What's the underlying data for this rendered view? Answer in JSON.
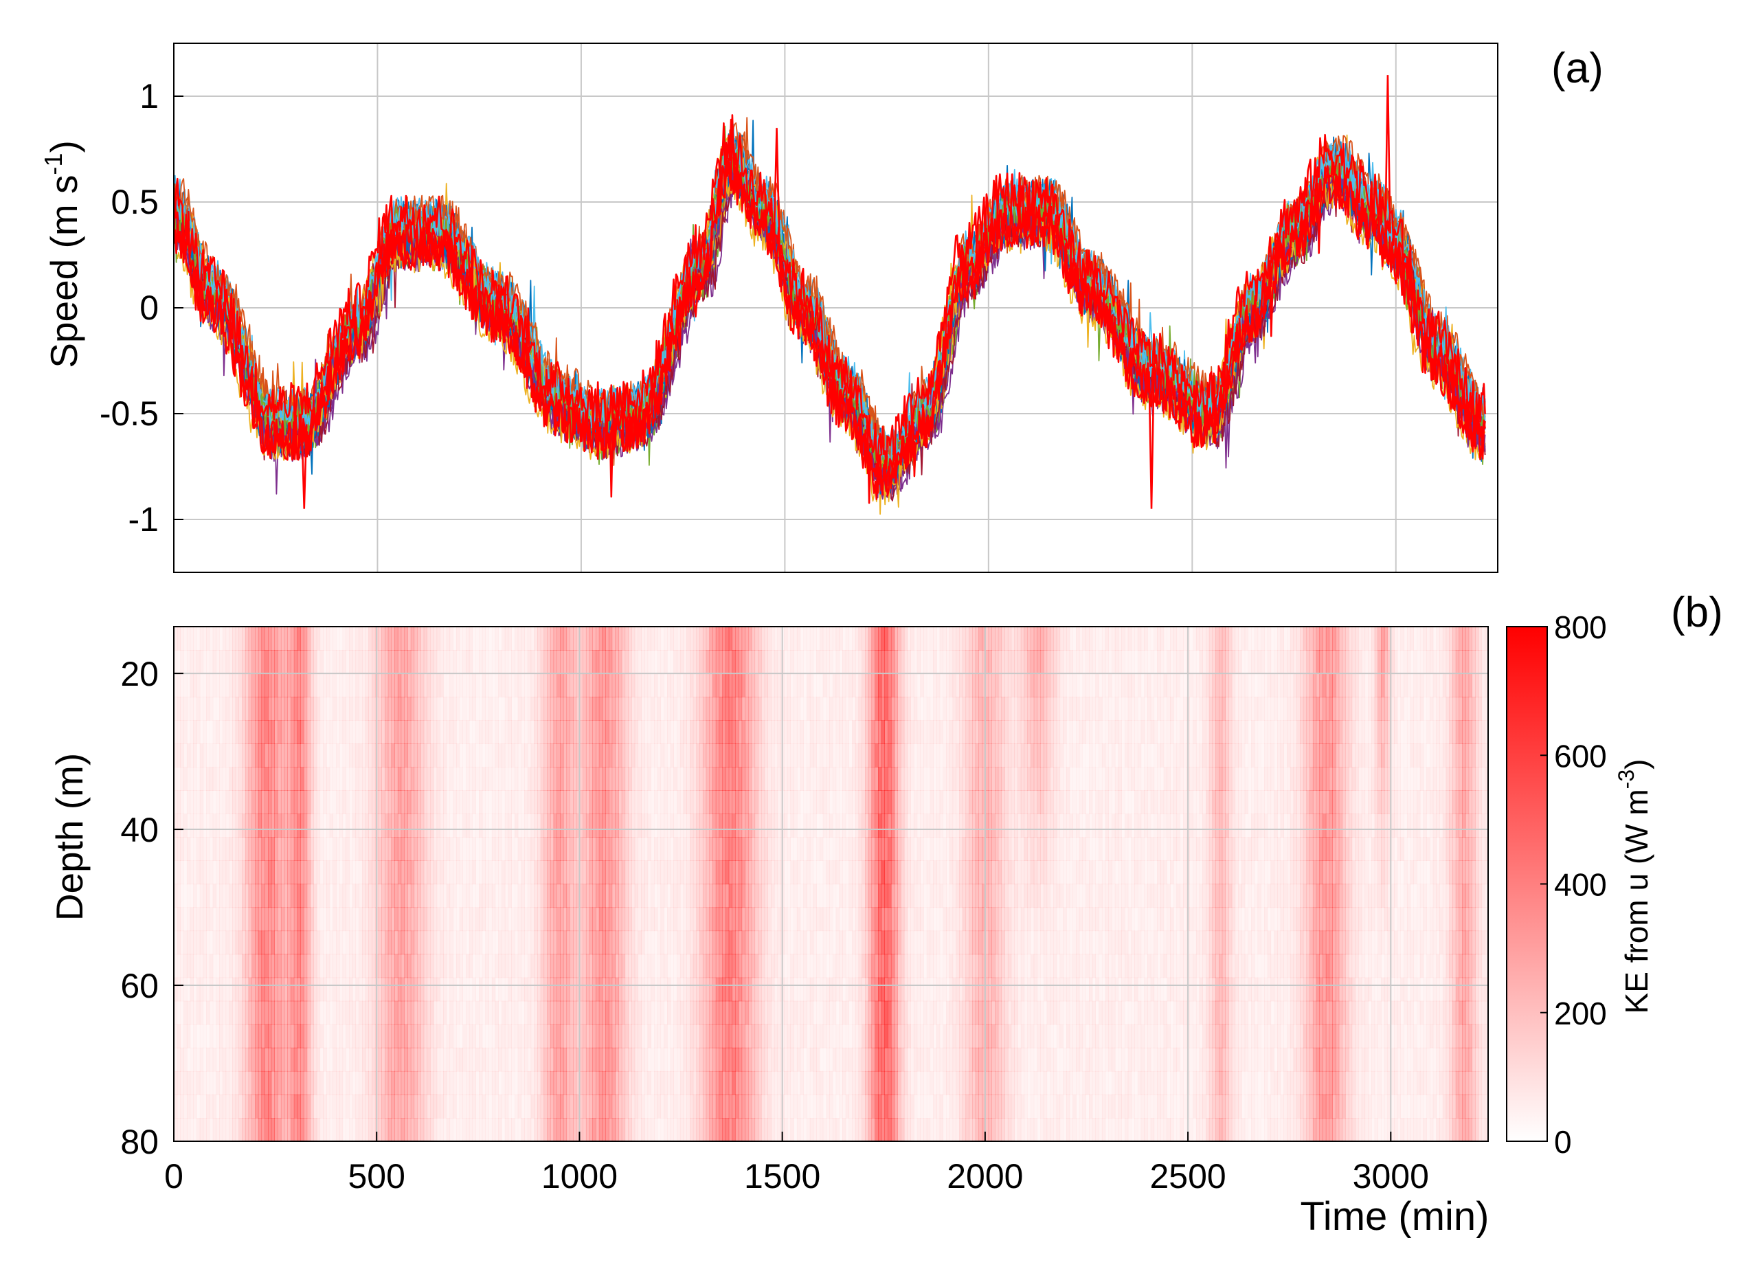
{
  "figure": {
    "panels": [
      {
        "panel_label": "(a)",
        "ylabel": "Speed  (m s",
        "ylabel_sup": "-1",
        "ylabel_close": ")"
      },
      {
        "panel_label": "(b)",
        "ylabel": "Depth (m)",
        "xlabel": "Time (min)",
        "colorbar_label": "KE from u (W m",
        "colorbar_label_sup": "-3",
        "colorbar_label_close": ")"
      }
    ]
  },
  "chart_data": [
    {
      "type": "line",
      "panel": "(a)",
      "description_note": "",
      "xlim": [
        0,
        3250
      ],
      "ylim": [
        -1.25,
        1.25
      ],
      "yticks": [
        -1,
        -0.5,
        0,
        0.5,
        1
      ],
      "ytick_labels": [
        "-1",
        "-0.5",
        "0",
        "0.5",
        "1"
      ],
      "xticks": [
        500,
        1000,
        1500,
        2000,
        2500,
        3000
      ],
      "grid": true,
      "series_count": 30,
      "series_colors": [
        "#0072BD",
        "#D95319",
        "#EDB120",
        "#7E2F8E",
        "#77AC30",
        "#4DBEEE",
        "#A2142F",
        "#FF0000"
      ],
      "highlight_series_color": "#FF0000",
      "envelope_x": [
        0,
        100,
        250,
        320,
        450,
        550,
        650,
        800,
        950,
        1050,
        1150,
        1300,
        1370,
        1450,
        1550,
        1650,
        1750,
        1850,
        1950,
        2050,
        2150,
        2250,
        2400,
        2550,
        2650,
        2750,
        2850,
        2950,
        3000,
        3100,
        3220
      ],
      "envelope_mean": [
        0.45,
        0.05,
        -0.55,
        -0.55,
        -0.1,
        0.35,
        0.35,
        0.0,
        -0.45,
        -0.55,
        -0.5,
        0.2,
        0.7,
        0.45,
        0.0,
        -0.4,
        -0.75,
        -0.5,
        0.2,
        0.45,
        0.45,
        0.1,
        -0.3,
        -0.5,
        0.0,
        0.35,
        0.65,
        0.45,
        0.3,
        -0.2,
        -0.55
      ],
      "spikes": [
        {
          "x": 320,
          "y": -0.95
        },
        {
          "x": 1480,
          "y": 0.85
        },
        {
          "x": 2980,
          "y": 1.1
        },
        {
          "x": 2400,
          "y": -0.95
        }
      ]
    },
    {
      "type": "heatmap",
      "panel": "(b)",
      "xlim": [
        0,
        3240
      ],
      "ylim": [
        80,
        14
      ],
      "xticks": [
        0,
        500,
        1000,
        1500,
        2000,
        2500,
        3000
      ],
      "xtick_labels": [
        "0",
        "500",
        "1000",
        "1500",
        "2000",
        "2500",
        "3000"
      ],
      "yticks": [
        20,
        40,
        60,
        80
      ],
      "ytick_labels": [
        "20",
        "40",
        "60",
        "80"
      ],
      "grid": true,
      "colorbar": {
        "min": 0,
        "max": 800,
        "ticks": [
          0,
          200,
          400,
          600,
          800
        ],
        "tick_labels": [
          "0",
          "200",
          "400",
          "600",
          "800"
        ],
        "color_low": "#ffffff",
        "color_high": "#ff0000"
      },
      "bands": [
        {
          "x_center": 230,
          "x_width": 110,
          "peak_value": 450,
          "depth_profile": "full"
        },
        {
          "x_center": 310,
          "x_width": 60,
          "peak_value": 420,
          "depth_profile": "full"
        },
        {
          "x_center": 560,
          "x_width": 130,
          "peak_value": 320,
          "depth_profile": "full"
        },
        {
          "x_center": 950,
          "x_width": 90,
          "peak_value": 320,
          "depth_profile": "full"
        },
        {
          "x_center": 1060,
          "x_width": 120,
          "peak_value": 380,
          "depth_profile": "full"
        },
        {
          "x_center": 1370,
          "x_width": 140,
          "peak_value": 480,
          "depth_profile": "full"
        },
        {
          "x_center": 1750,
          "x_width": 80,
          "peak_value": 600,
          "depth_profile": "full"
        },
        {
          "x_center": 2000,
          "x_width": 110,
          "peak_value": 250,
          "depth_profile": "full"
        },
        {
          "x_center": 2130,
          "x_width": 90,
          "peak_value": 300,
          "depth_profile": "upper"
        },
        {
          "x_center": 2580,
          "x_width": 60,
          "peak_value": 220,
          "depth_profile": "full"
        },
        {
          "x_center": 2840,
          "x_width": 110,
          "peak_value": 380,
          "depth_profile": "full"
        },
        {
          "x_center": 2980,
          "x_width": 40,
          "peak_value": 350,
          "depth_profile": "upper"
        },
        {
          "x_center": 3180,
          "x_width": 70,
          "peak_value": 300,
          "depth_profile": "full"
        }
      ]
    }
  ]
}
